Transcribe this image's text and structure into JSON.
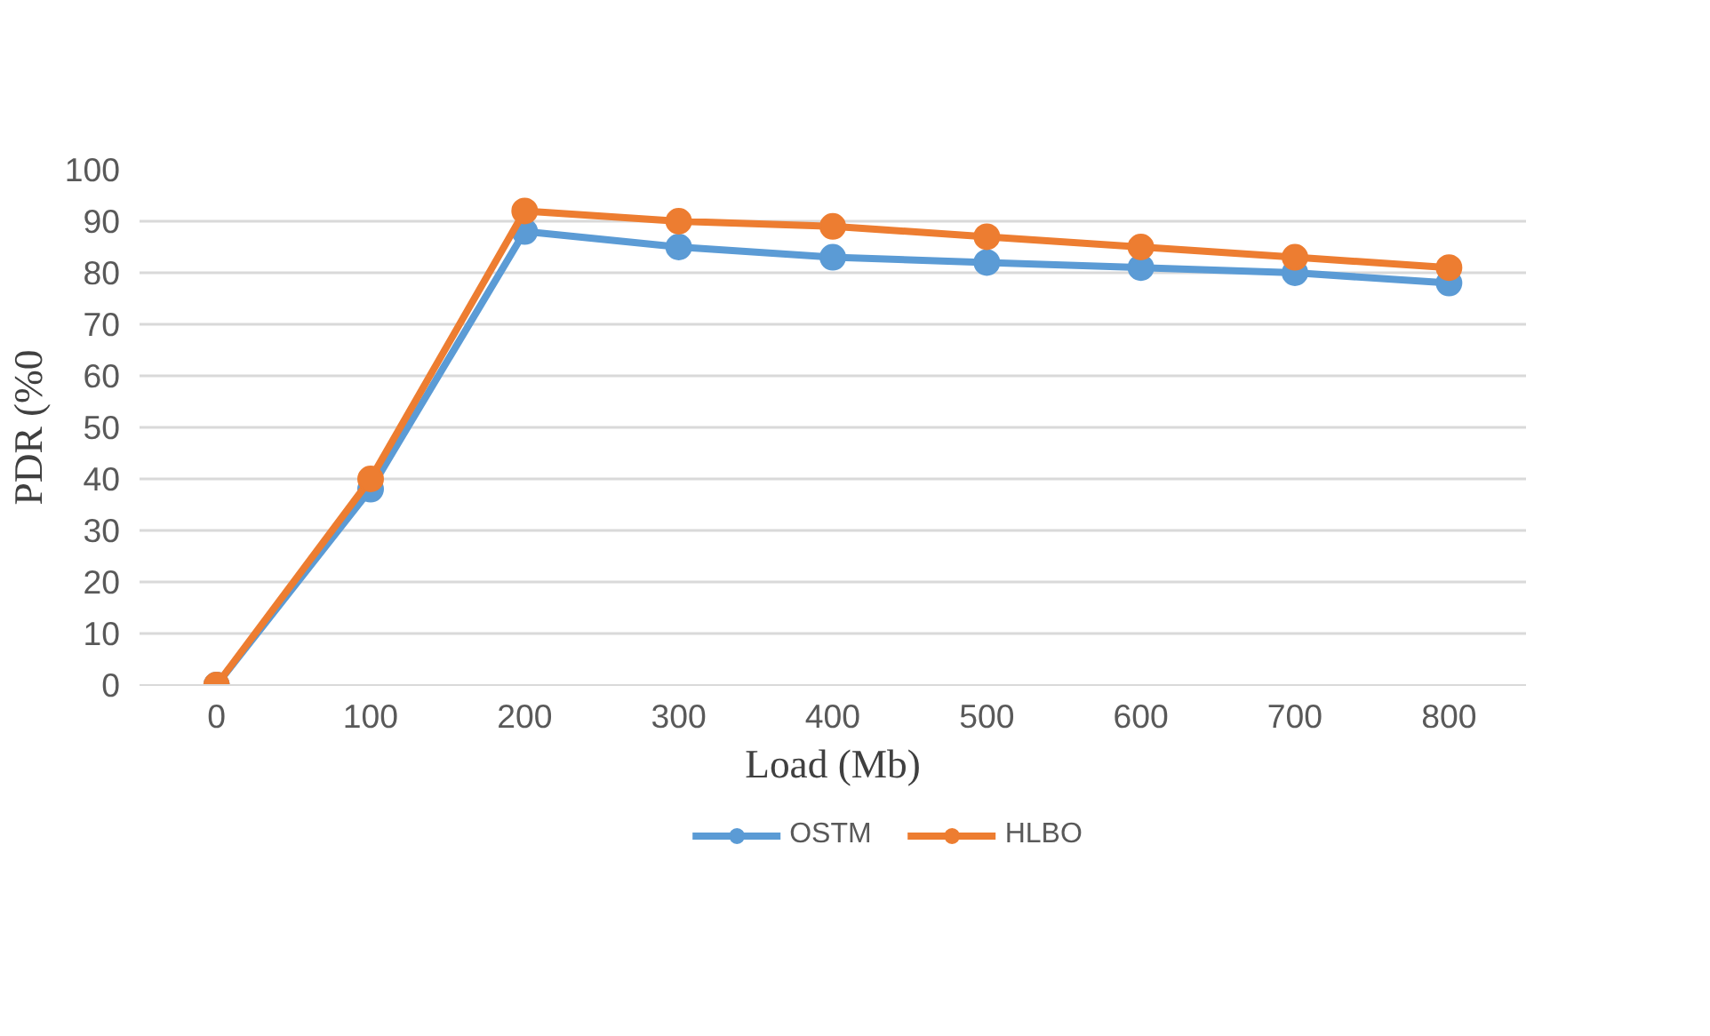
{
  "chart_data": {
    "type": "line",
    "xlabel": "Load (Mb)",
    "ylabel": "PDR (%0",
    "categories": [
      "0",
      "100",
      "200",
      "300",
      "400",
      "500",
      "600",
      "700",
      "800"
    ],
    "series": [
      {
        "name": "OSTM",
        "color": "#5b9bd5",
        "values": [
          0,
          38,
          88,
          85,
          83,
          82,
          81,
          80,
          78
        ]
      },
      {
        "name": "HLBO",
        "color": "#ed7d31",
        "values": [
          0,
          40,
          92,
          90,
          89,
          87,
          85,
          83,
          81
        ]
      }
    ],
    "ylim": [
      0,
      100
    ],
    "yticks": [
      0,
      10,
      20,
      30,
      40,
      50,
      60,
      70,
      80,
      90,
      100
    ],
    "grid": "y",
    "legend": "bottom",
    "marker": "circle",
    "line_style": "solid"
  }
}
